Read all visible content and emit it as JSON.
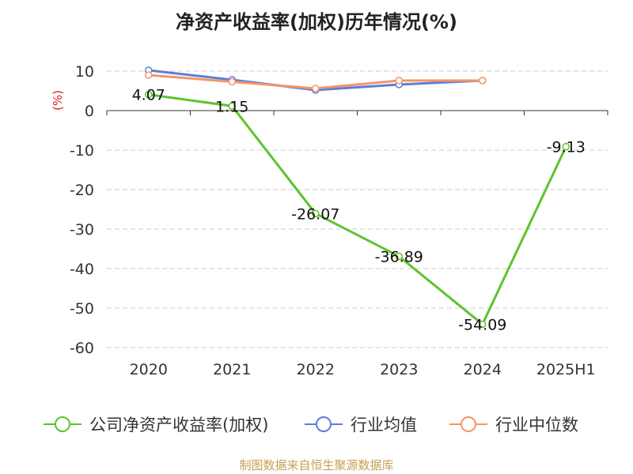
{
  "chart_data": {
    "type": "line",
    "title": "净资产收益率(加权)历年情况(%)",
    "ylabel": "(%)",
    "xlabel": "",
    "categories": [
      "2020",
      "2021",
      "2022",
      "2023",
      "2024",
      "2025H1"
    ],
    "ylim": [
      -60,
      10
    ],
    "yticks": [
      10,
      0,
      -10,
      -20,
      -30,
      -40,
      -50,
      -60
    ],
    "grid": true,
    "legend_position": "bottom",
    "series": [
      {
        "name": "公司净资产收益率(加权)",
        "color": "#5cc42a",
        "values": [
          4.07,
          1.15,
          -26.07,
          -36.89,
          -54.09,
          -9.13
        ],
        "labels": [
          "4.07",
          "1.15",
          "-26.07",
          "-36.89",
          "-54.09",
          "-9.13"
        ]
      },
      {
        "name": "行业均值",
        "color": "#5b7fd6",
        "values": [
          10.2,
          7.8,
          5.2,
          6.6,
          7.6,
          null
        ]
      },
      {
        "name": "行业中位数",
        "color": "#f5946a",
        "values": [
          9.0,
          7.3,
          5.6,
          7.6,
          7.6,
          null
        ]
      }
    ]
  },
  "source_text": "制图数据来自恒生聚源数据库",
  "colors": {
    "axis_label": "#d82020",
    "text": "#333333",
    "grid": "#cccccc"
  }
}
